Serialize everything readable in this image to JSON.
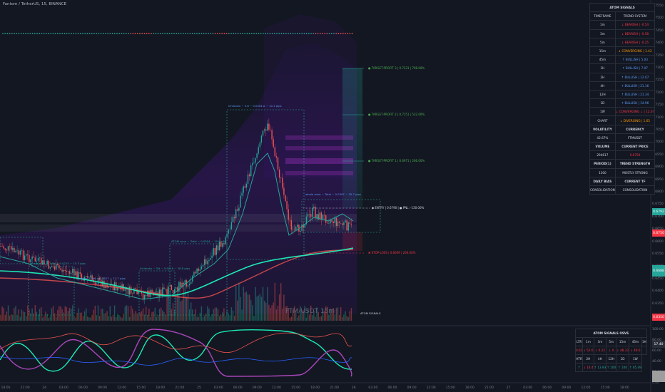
{
  "header": {
    "title": "Fantom / TetherUS, 15, BINANCE"
  },
  "colors": {
    "bg": "#131722",
    "up": "#26a69a",
    "down": "#ef5350",
    "purple": "#7b1fa2",
    "green_line": "#1de9b6",
    "blue": "#5b9cf6"
  },
  "chart_data": {
    "type": "candlestick",
    "symbol": "FTM/USDT",
    "timeframe": "15m",
    "price_axis": [
      "0.7550",
      "0.7500",
      "0.7450",
      "0.7400",
      "0.7350",
      "0.7300",
      "0.7250",
      "0.7200",
      "0.7150",
      "0.7100",
      "0.7050",
      "0.7000",
      "0.6950",
      "0.6900",
      "0.6850",
      "0.6800",
      "0.6750",
      "0.6700",
      "0.6650",
      "0.6600",
      "0.6550",
      "0.6500",
      "0.6450",
      "0.6400",
      "0.6350"
    ],
    "time_axis": [
      "18:00",
      "21:00",
      "24",
      "03:00",
      "06:00",
      "09:00",
      "12:00",
      "15:00",
      "18:00",
      "21:00",
      "25",
      "03:00",
      "06:00",
      "09:00",
      "12:00",
      "15:00",
      "18:00",
      "21:00",
      "26",
      "03:00",
      "06:00",
      "09:00",
      "12:00",
      "15:00",
      "18:00",
      "21:00",
      "27",
      "03:00",
      "06:00",
      "09:00",
      "12:00",
      "15:00",
      "18:00"
    ],
    "oscillator_axis": [
      "100.00",
      "80.00",
      "60.00",
      "40.00",
      "20.00",
      "0.00"
    ],
    "price_tags": [
      {
        "text": "0.6792",
        "color": "#26a69a"
      },
      {
        "text": "0.6750",
        "color": "#f23645"
      },
      {
        "text": "0.6688",
        "color": "#26a69a"
      },
      {
        "text": "0.6350",
        "color": "#f23645"
      }
    ],
    "oscillator_tags": [
      {
        "text": "17.40",
        "color": "#2a2e39"
      },
      {
        "text": "80.00",
        "color": "#2a2e39"
      }
    ]
  },
  "overlays": {
    "targets": [
      {
        "label": "● TARGET-PROFIT 3 | 0.7331 | 798.00%"
      },
      {
        "label": "● TARGET-PROFIT 2 | 0.7151 | 532.00%"
      },
      {
        "label": "● TARGET-PROFIT 1 | 0.6971 | 266.00%"
      }
    ],
    "entry": "◆ ENTRY | 0.6790 | ● PNL: -130.00%",
    "stop": "✖ STOP-LOSS | 0.6609 | 266.00%",
    "watermark": "FTM/USDT 15m",
    "atom_label": "ATOM SIGNALS",
    "zone_labels": [
      "Ichimoku ~ 3.6 ~ 0.0504 Δ ~ 10.1 pips",
      "whale zone ~ Total ~ 0.0397 ~ 30.7 pips",
      "ATOM zone ~ Total ~ 0.0304 ~ 15.0 pips",
      "outdoor ~ Tot ~ 0.0017 ~ 17.7 pips",
      "whale zone ~ Total ~ 0.0215 ~ 15.3 pips",
      "Ichimoku ~ Tot ~ 0.0016 ~ 28.8 pips"
    ]
  },
  "signals_table": {
    "title": "ATOM SIGNALS",
    "col1": "TIMEFRAME",
    "col2": "TREND SYSTEM",
    "rows": [
      {
        "tf": "1m",
        "trend": "↓ BEARISH | -0.54",
        "color": "#f23645"
      },
      {
        "tf": "3m",
        "trend": "↓ BEARISH | -0.58",
        "color": "#f23645"
      },
      {
        "tf": "5m",
        "trend": "↓ BEARISH | -0.25",
        "color": "#f23645"
      },
      {
        "tf": "15m",
        "trend": "↓ CONVERGING | 1.43",
        "color": "#ff9800"
      },
      {
        "tf": "45m",
        "trend": "↑ BULLISH | 5.03",
        "color": "#5b9cf6"
      },
      {
        "tf": "1H",
        "trend": "↑ BULLISH | 7.07",
        "color": "#5b9cf6"
      },
      {
        "tf": "2H",
        "trend": "↑ BULLISH | 12.07",
        "color": "#5b9cf6"
      },
      {
        "tf": "4H",
        "trend": "↑ BULLISH | 21.16",
        "color": "#5b9cf6"
      },
      {
        "tf": "12H",
        "trend": "↑ BULLISH | 21.34",
        "color": "#5b9cf6"
      },
      {
        "tf": "1D",
        "trend": "↑ BULLISH | 14.96",
        "color": "#5b9cf6"
      },
      {
        "tf": "1W",
        "trend": "↓ CONVERGING ↓ | 12.07",
        "color": "#f23645"
      },
      {
        "tf": "CHART",
        "trend": "↓ DIVERGING | 1.65",
        "color": "#ff9800"
      }
    ],
    "stats": [
      {
        "k1": "VOLATILITY",
        "k2": "CURRENCY",
        "v1": "42.67%",
        "v2": "FTMUSDT"
      },
      {
        "k1": "VOLUME",
        "k2": "CURRENT PRICE",
        "v1": "294617",
        "v2": "0.6750"
      },
      {
        "k1": "PERIOD(1)",
        "k2": "TREND STRENGTH",
        "v1": "1300",
        "v2": "MOSTLY STRONG"
      },
      {
        "k1": "DAILY BIAS",
        "k2": "CURRENT TF",
        "v1": "CONSOLIDATION",
        "v2": "CONSOLIDATION"
      }
    ]
  },
  "osc_table": {
    "title": "ATOM SIGNALS OSVS",
    "row1": [
      "LTR",
      "1m",
      "3m",
      "5m",
      "15m",
      "45m",
      "1H"
    ],
    "row2": [
      "0.61",
      "↓ 52.6",
      "↓ 0.22",
      "↓ 0",
      "↓ 48.33",
      "↓ 49.6",
      ""
    ],
    "row3": [
      "HTR",
      "2H",
      "4H",
      "12H",
      "1D",
      "1W"
    ],
    "row4": [
      "↑",
      "↓ 14.4",
      "↑ 13.93",
      "↑ 100",
      "↑ 100",
      "↑ 65.49"
    ]
  }
}
